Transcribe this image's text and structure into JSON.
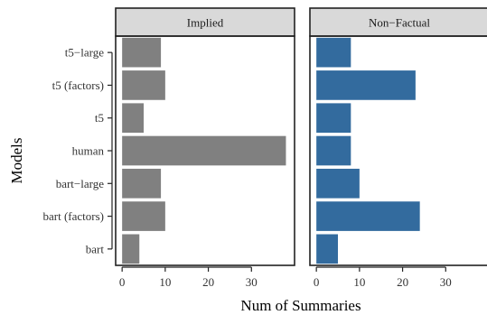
{
  "chart_data": {
    "type": "bar",
    "orientation": "horizontal",
    "facets": [
      "Implied",
      "Non−Factual"
    ],
    "categories": [
      "t5−large",
      "t5 (factors)",
      "t5",
      "human",
      "bart−large",
      "bart (factors)",
      "bart"
    ],
    "series": [
      {
        "facet": "Implied",
        "values": [
          9,
          10,
          5,
          38,
          9,
          10,
          4
        ]
      },
      {
        "facet": "Non−Factual",
        "values": [
          8,
          23,
          8,
          8,
          10,
          24,
          5
        ]
      }
    ],
    "xlabel": "Num of Summaries",
    "ylabel": "Models",
    "xlim": [
      -1.5,
      40
    ],
    "xticks": [
      0,
      10,
      20,
      30
    ],
    "grid": false,
    "legend": "none"
  },
  "colors": {
    "Implied": "#808080",
    "Non−Factual": "#336b9e",
    "strip_fill": "#d9d9d9",
    "frame": "#222222"
  }
}
